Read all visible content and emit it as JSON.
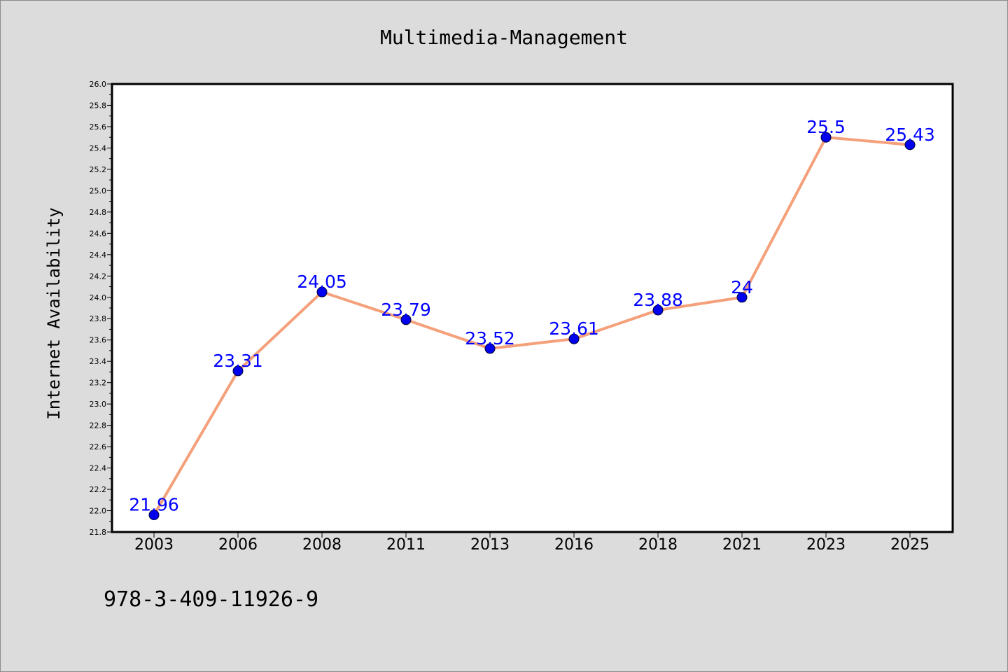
{
  "chart_data": {
    "type": "line",
    "title": "Multimedia-Management",
    "xlabel": "",
    "ylabel": "Internet Availability",
    "categories": [
      "2003",
      "2006",
      "2008",
      "2011",
      "2013",
      "2016",
      "2018",
      "2021",
      "2023",
      "2025"
    ],
    "series": [
      {
        "values": [
          21.96,
          23.31,
          24.05,
          23.79,
          23.52,
          23.61,
          23.88,
          24,
          25.5,
          25.43
        ],
        "data_labels": [
          "21.96",
          "23.31",
          "24.05",
          "23.79",
          "23.52",
          "23.61",
          "23.88",
          "24",
          "25.5",
          "25.43"
        ]
      }
    ],
    "ylim": [
      21.8,
      26.0
    ],
    "yticks": [
      "21.8",
      "22.0",
      "22.2",
      "22.4",
      "22.6",
      "22.8",
      "23.0",
      "23.2",
      "23.4",
      "23.6",
      "23.8",
      "24.0",
      "24.2",
      "24.4",
      "24.6",
      "24.8",
      "25.0",
      "25.2",
      "25.4",
      "25.6",
      "25.8",
      "26.0"
    ],
    "grid": false,
    "colors": {
      "line": "#f4a07a",
      "marker": "#0000ee",
      "label": "#0000ff",
      "background": "#dcdcdc",
      "plot_background": "#ffffff"
    }
  },
  "footnote": "978-3-409-11926-9"
}
